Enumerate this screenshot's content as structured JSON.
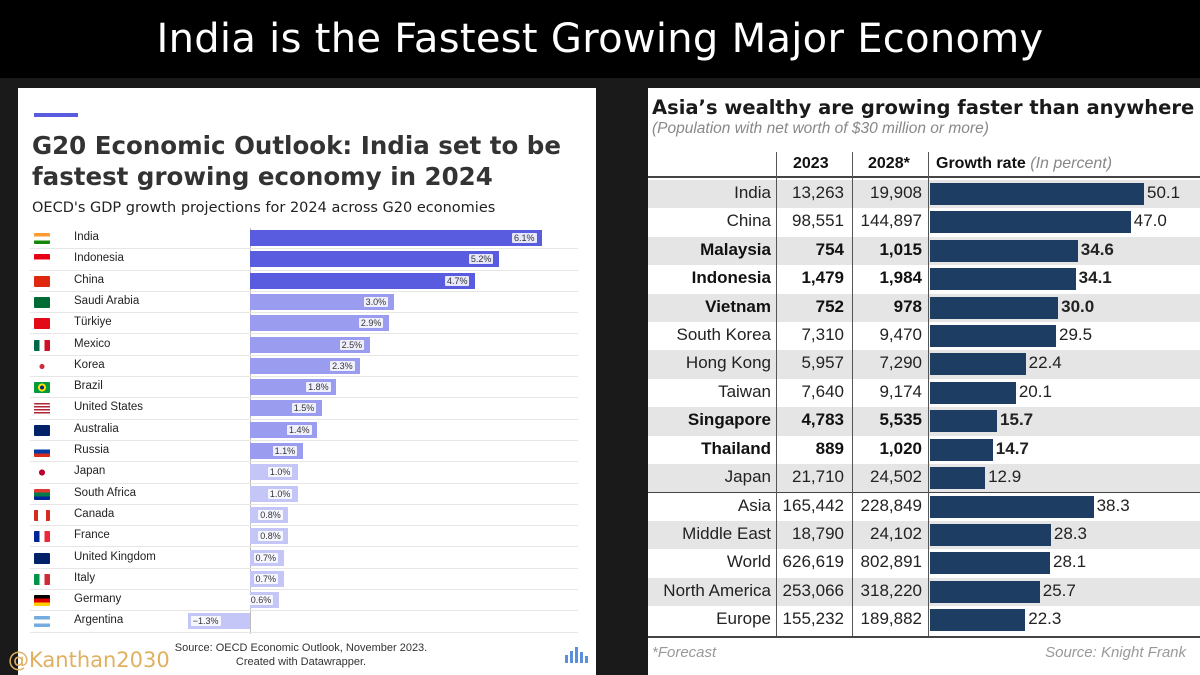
{
  "banner": {
    "title": "India is the Fastest Growing Major Economy"
  },
  "handle": "@Kanthan2030",
  "chart_data": [
    {
      "type": "bar",
      "orientation": "horizontal",
      "title": "G20 Economic Outlook: India set to be fastest growing economy in 2024",
      "subtitle": "OECD's GDP growth projections for 2024 across G20 economies",
      "categories": [
        "India",
        "Indonesia",
        "China",
        "Saudi Arabia",
        "Türkiye",
        "Mexico",
        "Korea",
        "Brazil",
        "United States",
        "Australia",
        "Russia",
        "Japan",
        "South Africa",
        "Canada",
        "France",
        "United Kingdom",
        "Italy",
        "Germany",
        "Argentina"
      ],
      "values": [
        6.1,
        5.2,
        4.7,
        3.0,
        2.9,
        2.5,
        2.3,
        1.8,
        1.5,
        1.4,
        1.1,
        1.0,
        1.0,
        0.8,
        0.8,
        0.7,
        0.7,
        0.6,
        -1.3
      ],
      "labels": [
        "6.1%",
        "5.2%",
        "4.7%",
        "3.0%",
        "2.9%",
        "2.5%",
        "2.3%",
        "1.8%",
        "1.5%",
        "1.4%",
        "1.1%",
        "1.0%",
        "1.0%",
        "0.8%",
        "0.8%",
        "0.7%",
        "0.7%",
        "0.6%",
        "−1.3%"
      ],
      "colors": [
        "#5a5ce0",
        "#5a5ce0",
        "#5a5ce0",
        "#9a9cf0",
        "#9a9cf0",
        "#9a9cf0",
        "#9a9cf0",
        "#9a9cf0",
        "#9a9cf0",
        "#9a9cf0",
        "#9a9cf0",
        "#c4c6f7",
        "#c4c6f7",
        "#c4c6f7",
        "#c4c6f7",
        "#c4c6f7",
        "#c4c6f7",
        "#c4c6f7",
        "#c4c6f7"
      ],
      "flags": [
        "linear-gradient(#ff9933 33%,#fff 33%,#fff 66%,#138808 66%)",
        "linear-gradient(#e70011 50%,#fff 50%)",
        "#de2910",
        "#006c35",
        "#e30a17",
        "linear-gradient(90deg,#006847 33%,#fff 33%,#fff 66%,#ce1126 66%)",
        "radial-gradient(circle,#cd2e3a 25%,#fff 27%)",
        "radial-gradient(circle,#002776 20%,#fedf00 22%,#fedf00 40%,#009c3b 42%)",
        "repeating-linear-gradient(#b22234 0 1.5px,#fff 1.5px 3px)",
        "#012169",
        "linear-gradient(#fff 33%,#0039a6 33%,#0039a6 66%,#d52b1e 66%)",
        "radial-gradient(circle,#bc002d 30%,#fff 32%)",
        "linear-gradient(#de3831 33%,#007a4d 33%,#007a4d 66%,#002395 66%)",
        "linear-gradient(90deg,#d52b1e 25%,#fff 25%,#fff 75%,#d52b1e 75%)",
        "linear-gradient(90deg,#002395 33%,#fff 33%,#fff 66%,#ed2939 66%)",
        "#012169",
        "linear-gradient(90deg,#009246 33%,#fff 33%,#fff 66%,#ce2b37 66%)",
        "linear-gradient(#000 33%,#dd0000 33%,#dd0000 66%,#ffce00 66%)",
        "linear-gradient(#74acdf 33%,#fff 33%,#fff 66%,#74acdf 66%)"
      ],
      "source": "Source: OECD Economic Outlook, November 2023. Created with Datawrapper.",
      "source_line1": "Source: OECD Economic Outlook, November 2023.",
      "source_line2": "Created with Datawrapper."
    },
    {
      "type": "table",
      "title": "Asia’s wealthy are growing faster than anywhere else",
      "subtitle": "(Population with net worth of $30 million or more)",
      "columns": [
        "2023",
        "2028*",
        "Growth rate",
        "(In percent)"
      ],
      "rows": [
        {
          "name": "India",
          "y2023": "13,263",
          "y2028": "19,908",
          "growth": 50.1,
          "label": "50.1",
          "bold": false
        },
        {
          "name": "China",
          "y2023": "98,551",
          "y2028": "144,897",
          "growth": 47.0,
          "label": "47.0",
          "bold": false
        },
        {
          "name": "Malaysia",
          "y2023": "754",
          "y2028": "1,015",
          "growth": 34.6,
          "label": "34.6",
          "bold": true
        },
        {
          "name": "Indonesia",
          "y2023": "1,479",
          "y2028": "1,984",
          "growth": 34.1,
          "label": "34.1",
          "bold": true
        },
        {
          "name": "Vietnam",
          "y2023": "752",
          "y2028": "978",
          "growth": 30.0,
          "label": "30.0",
          "bold": true
        },
        {
          "name": "South Korea",
          "y2023": "7,310",
          "y2028": "9,470",
          "growth": 29.5,
          "label": "29.5",
          "bold": false
        },
        {
          "name": "Hong Kong",
          "y2023": "5,957",
          "y2028": "7,290",
          "growth": 22.4,
          "label": "22.4",
          "bold": false
        },
        {
          "name": "Taiwan",
          "y2023": "7,640",
          "y2028": "9,174",
          "growth": 20.1,
          "label": "20.1",
          "bold": false
        },
        {
          "name": "Singapore",
          "y2023": "4,783",
          "y2028": "5,535",
          "growth": 15.7,
          "label": "15.7",
          "bold": true
        },
        {
          "name": "Thailand",
          "y2023": "889",
          "y2028": "1,020",
          "growth": 14.7,
          "label": "14.7",
          "bold": true
        },
        {
          "name": "Japan",
          "y2023": "21,710",
          "y2028": "24,502",
          "growth": 12.9,
          "label": "12.9",
          "bold": false
        },
        {
          "name": "Asia",
          "y2023": "165,442",
          "y2028": "228,849",
          "growth": 38.3,
          "label": "38.3",
          "bold": false
        },
        {
          "name": "Middle East",
          "y2023": "18,790",
          "y2028": "24,102",
          "growth": 28.3,
          "label": "28.3",
          "bold": false
        },
        {
          "name": "World",
          "y2023": "626,619",
          "y2028": "802,891",
          "growth": 28.1,
          "label": "28.1",
          "bold": false
        },
        {
          "name": "North America",
          "y2023": "253,066",
          "y2028": "318,220",
          "growth": 25.7,
          "label": "25.7",
          "bold": false
        },
        {
          "name": "Europe",
          "y2023": "155,232",
          "y2028": "189,882",
          "growth": 22.3,
          "label": "22.3",
          "bold": false
        }
      ],
      "bar_color": "#1d3d63",
      "footnote": "*Forecast",
      "source": "Source: Knight Frank"
    }
  ]
}
